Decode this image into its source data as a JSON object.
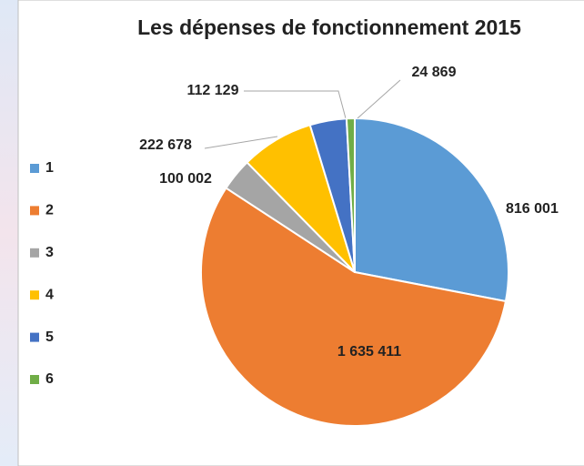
{
  "chart_data": {
    "type": "pie",
    "title": "Les dépenses de fonctionnement 2015",
    "categories": [
      "1",
      "2",
      "3",
      "4",
      "5",
      "6"
    ],
    "values": [
      816001,
      1635411,
      100002,
      222678,
      112129,
      24869
    ],
    "value_labels": [
      "816 001",
      "1 635 411",
      "100 002",
      "222 678",
      "112 129",
      "24 869"
    ],
    "colors": [
      "#5b9bd5",
      "#ed7d31",
      "#a5a5a5",
      "#ffc000",
      "#4472c4",
      "#70ad47"
    ],
    "legend": "left"
  }
}
